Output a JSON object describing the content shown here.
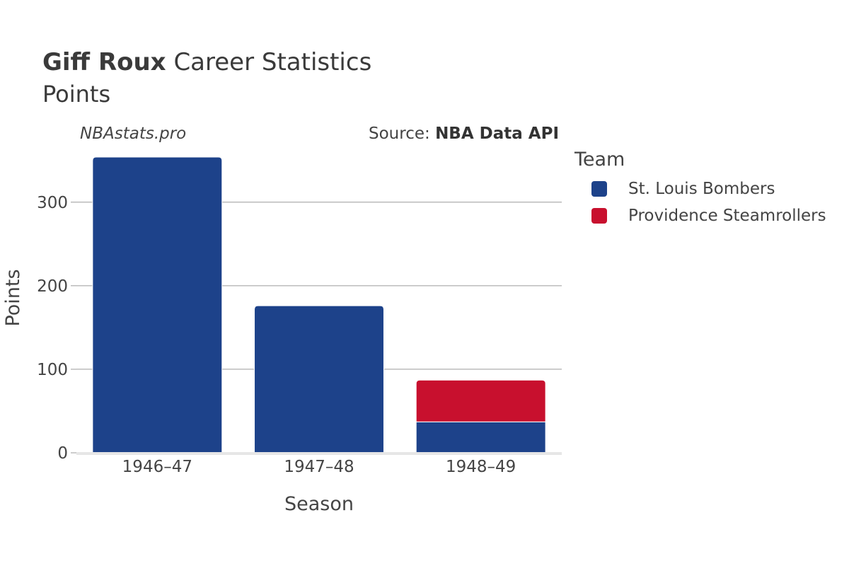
{
  "header": {
    "title_bold": "Giff Roux",
    "title_rest": "Career Statistics",
    "subtitle": "Points"
  },
  "watermark": "NBAstats.pro",
  "source": {
    "prefix": "Source: ",
    "name": "NBA Data API"
  },
  "legend": {
    "title": "Team",
    "items": [
      {
        "label": "St. Louis Bombers",
        "color": "#1D428A"
      },
      {
        "label": "Providence Steamrollers",
        "color": "#C8102E"
      }
    ]
  },
  "chart_data": {
    "type": "bar",
    "stacked": true,
    "categories": [
      "1946–47",
      "1947–48",
      "1948–49"
    ],
    "series": [
      {
        "name": "St. Louis Bombers",
        "color": "#1D428A",
        "values": [
          354,
          176,
          37
        ]
      },
      {
        "name": "Providence Steamrollers",
        "color": "#C8102E",
        "values": [
          0,
          0,
          50
        ]
      }
    ],
    "xlabel": "Season",
    "ylabel": "Points",
    "ylim": [
      0,
      354
    ],
    "yticks": [
      0,
      100,
      200,
      300
    ],
    "grid": true,
    "legend_position": "right"
  }
}
